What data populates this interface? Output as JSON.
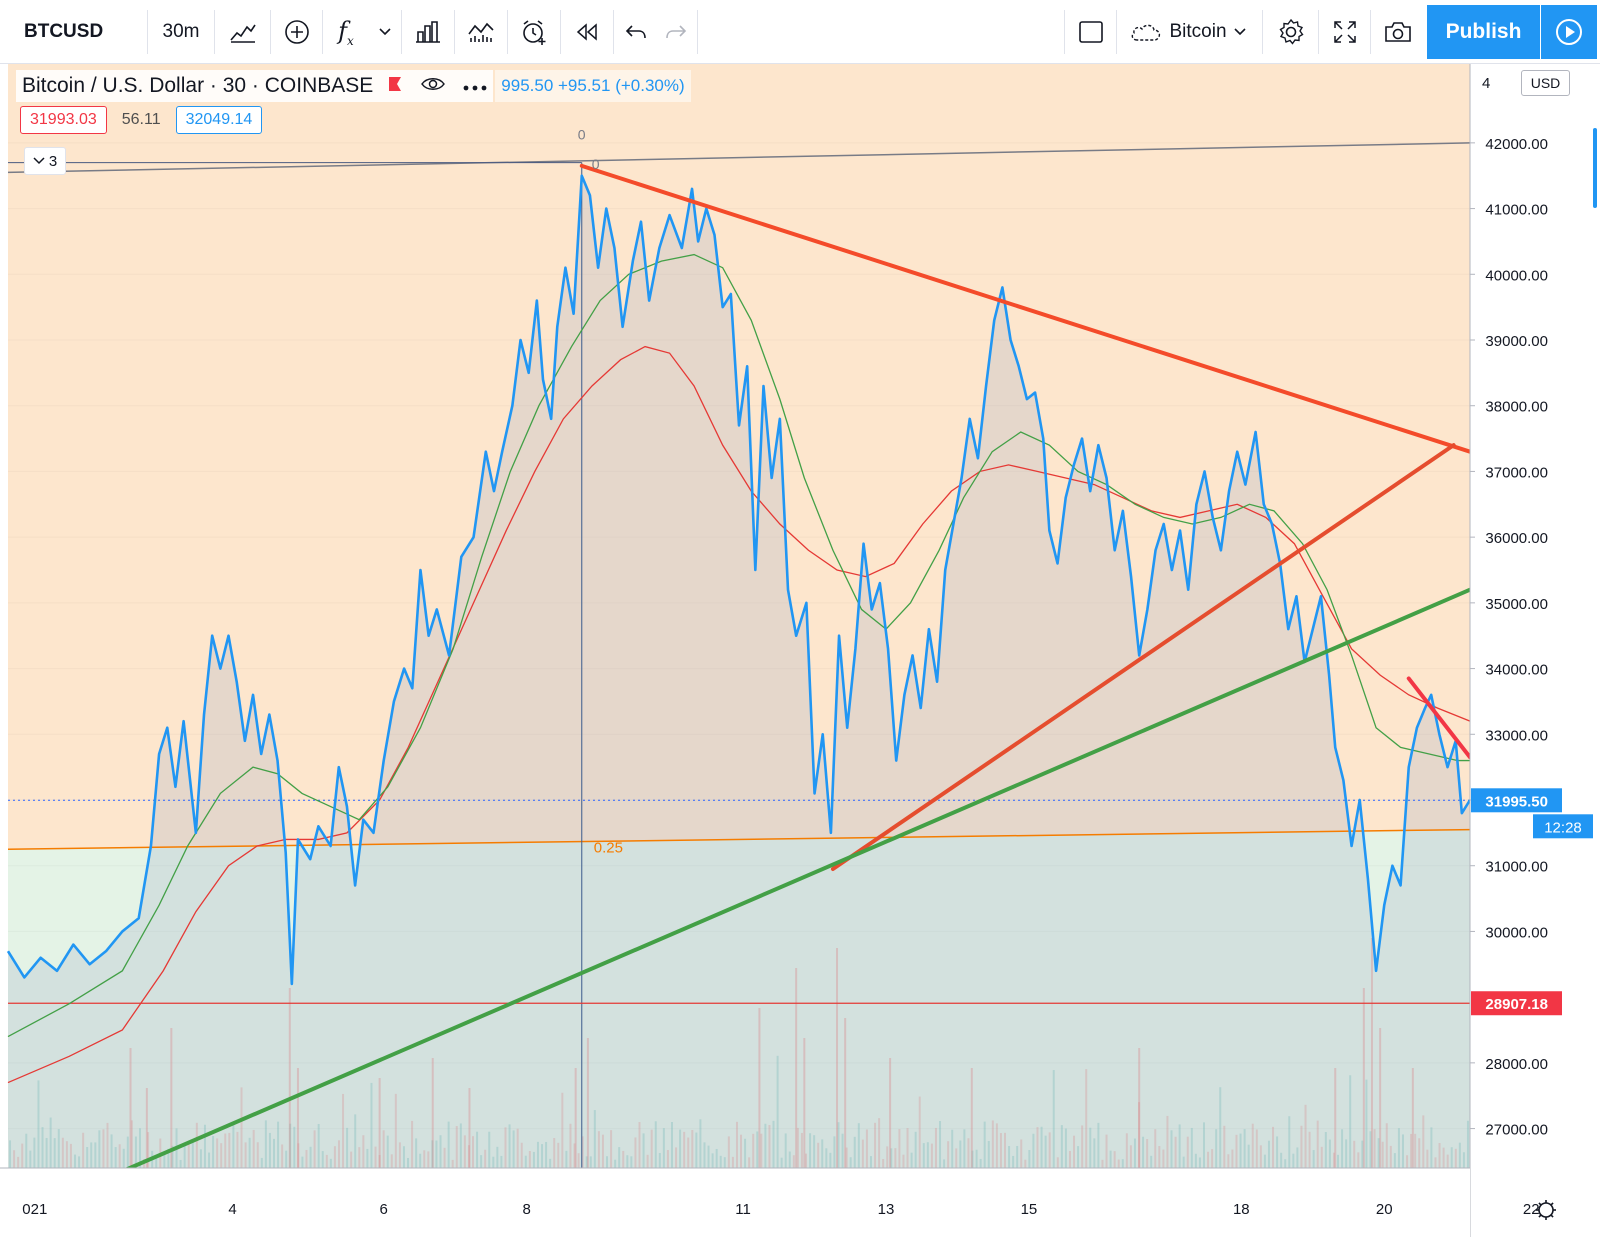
{
  "toolbar": {
    "symbol": "BTCUSD",
    "interval": "30m",
    "fx_label": "f",
    "fx_sub": "x",
    "layout_name": "Bitcoin",
    "publish_label": "Publish"
  },
  "legend": {
    "title": "Bitcoin / U.S. Dollar · 30 · COINBASE",
    "price_change": "995.50 +95.51 (+0.30%)",
    "collapsed_count": "3"
  },
  "indicators": [
    {
      "value": "31993.03",
      "color": "#f23645"
    },
    {
      "value": "56.11",
      "color": "#4f4f4f"
    },
    {
      "value": "32049.14",
      "color": "#2196f3"
    }
  ],
  "chart_data": {
    "type": "line",
    "currency": "USD",
    "x_ticks": [
      "021",
      "4",
      "6",
      "8",
      "11",
      "13",
      "15",
      "18",
      "20",
      "22"
    ],
    "y_ticks": [
      "42000.00",
      "41000.00",
      "40000.00",
      "39000.00",
      "38000.00",
      "37000.00",
      "36000.00",
      "35000.00",
      "34000.00",
      "33000.00",
      "32000.00",
      "31000.00",
      "30000.00",
      "28000.00",
      "27000.00"
    ],
    "y_top_partial": "4",
    "ylim": [
      26400,
      43200
    ],
    "current_price": "31995.50",
    "countdown": "12:28",
    "hline_price": "28907.18",
    "fib_label_top": "0",
    "fib_label_top2": "0",
    "fib_label_mid": "0.25",
    "price_series": [
      [
        0,
        29700
      ],
      [
        0.4,
        29300
      ],
      [
        0.8,
        29600
      ],
      [
        1.2,
        29400
      ],
      [
        1.6,
        29800
      ],
      [
        2.0,
        29500
      ],
      [
        2.4,
        29700
      ],
      [
        2.8,
        30000
      ],
      [
        3.2,
        30200
      ],
      [
        3.5,
        31300
      ],
      [
        3.7,
        32700
      ],
      [
        3.9,
        33100
      ],
      [
        4.1,
        32200
      ],
      [
        4.3,
        33200
      ],
      [
        4.6,
        31500
      ],
      [
        4.8,
        33300
      ],
      [
        5.0,
        34500
      ],
      [
        5.2,
        34000
      ],
      [
        5.4,
        34500
      ],
      [
        5.6,
        33800
      ],
      [
        5.8,
        32900
      ],
      [
        6.0,
        33600
      ],
      [
        6.2,
        32700
      ],
      [
        6.4,
        33300
      ],
      [
        6.6,
        32600
      ],
      [
        6.8,
        31200
      ],
      [
        6.95,
        29200
      ],
      [
        7.1,
        31400
      ],
      [
        7.4,
        31100
      ],
      [
        7.6,
        31600
      ],
      [
        7.9,
        31300
      ],
      [
        8.1,
        32500
      ],
      [
        8.3,
        31900
      ],
      [
        8.5,
        30700
      ],
      [
        8.7,
        31700
      ],
      [
        8.95,
        31500
      ],
      [
        9.2,
        32600
      ],
      [
        9.45,
        33500
      ],
      [
        9.7,
        34000
      ],
      [
        9.9,
        33700
      ],
      [
        10.1,
        35500
      ],
      [
        10.3,
        34500
      ],
      [
        10.5,
        34900
      ],
      [
        10.8,
        34200
      ],
      [
        11.1,
        35700
      ],
      [
        11.4,
        36000
      ],
      [
        11.7,
        37300
      ],
      [
        11.9,
        36700
      ],
      [
        12.1,
        37300
      ],
      [
        12.35,
        38000
      ],
      [
        12.55,
        39000
      ],
      [
        12.75,
        38500
      ],
      [
        12.95,
        39600
      ],
      [
        13.1,
        38400
      ],
      [
        13.3,
        37800
      ],
      [
        13.45,
        39200
      ],
      [
        13.65,
        40100
      ],
      [
        13.85,
        39400
      ],
      [
        14.05,
        41500
      ],
      [
        14.25,
        41200
      ],
      [
        14.45,
        40100
      ],
      [
        14.65,
        41000
      ],
      [
        14.85,
        40400
      ],
      [
        15.05,
        39200
      ],
      [
        15.3,
        40200
      ],
      [
        15.5,
        40800
      ],
      [
        15.7,
        39600
      ],
      [
        15.95,
        40400
      ],
      [
        16.2,
        40900
      ],
      [
        16.5,
        40400
      ],
      [
        16.75,
        41300
      ],
      [
        16.9,
        40500
      ],
      [
        17.1,
        41000
      ],
      [
        17.3,
        40600
      ],
      [
        17.5,
        39500
      ],
      [
        17.7,
        39700
      ],
      [
        17.9,
        37700
      ],
      [
        18.1,
        38600
      ],
      [
        18.3,
        35500
      ],
      [
        18.5,
        38300
      ],
      [
        18.7,
        36900
      ],
      [
        18.9,
        37800
      ],
      [
        19.1,
        35200
      ],
      [
        19.3,
        34500
      ],
      [
        19.55,
        35000
      ],
      [
        19.75,
        32100
      ],
      [
        19.95,
        33000
      ],
      [
        20.15,
        31500
      ],
      [
        20.35,
        34500
      ],
      [
        20.55,
        33100
      ],
      [
        20.75,
        34300
      ],
      [
        20.95,
        35900
      ],
      [
        21.15,
        34900
      ],
      [
        21.35,
        35300
      ],
      [
        21.55,
        34300
      ],
      [
        21.75,
        32600
      ],
      [
        21.95,
        33600
      ],
      [
        22.15,
        34200
      ],
      [
        22.35,
        33400
      ],
      [
        22.55,
        34600
      ],
      [
        22.75,
        33800
      ],
      [
        22.95,
        35500
      ],
      [
        23.15,
        36200
      ],
      [
        23.35,
        36900
      ],
      [
        23.55,
        37800
      ],
      [
        23.75,
        37200
      ],
      [
        23.95,
        38300
      ],
      [
        24.15,
        39300
      ],
      [
        24.35,
        39800
      ],
      [
        24.55,
        39000
      ],
      [
        24.75,
        38600
      ],
      [
        24.95,
        38100
      ],
      [
        25.15,
        38200
      ],
      [
        25.35,
        37500
      ],
      [
        25.5,
        36100
      ],
      [
        25.7,
        35600
      ],
      [
        25.9,
        36600
      ],
      [
        26.1,
        37100
      ],
      [
        26.3,
        37500
      ],
      [
        26.5,
        36700
      ],
      [
        26.7,
        37400
      ],
      [
        26.9,
        36900
      ],
      [
        27.1,
        35800
      ],
      [
        27.3,
        36400
      ],
      [
        27.5,
        35400
      ],
      [
        27.7,
        34200
      ],
      [
        27.9,
        34900
      ],
      [
        28.1,
        35800
      ],
      [
        28.3,
        36200
      ],
      [
        28.5,
        35500
      ],
      [
        28.7,
        36100
      ],
      [
        28.9,
        35200
      ],
      [
        29.1,
        36500
      ],
      [
        29.3,
        37000
      ],
      [
        29.5,
        36300
      ],
      [
        29.7,
        35800
      ],
      [
        29.9,
        36700
      ],
      [
        30.1,
        37300
      ],
      [
        30.3,
        36800
      ],
      [
        30.55,
        37600
      ],
      [
        30.75,
        36500
      ],
      [
        30.95,
        36200
      ],
      [
        31.15,
        35600
      ],
      [
        31.35,
        34600
      ],
      [
        31.55,
        35100
      ],
      [
        31.75,
        34100
      ],
      [
        31.95,
        34600
      ],
      [
        32.15,
        35100
      ],
      [
        32.35,
        33900
      ],
      [
        32.5,
        32800
      ],
      [
        32.7,
        32300
      ],
      [
        32.9,
        31300
      ],
      [
        33.1,
        32000
      ],
      [
        33.3,
        30800
      ],
      [
        33.5,
        29400
      ],
      [
        33.7,
        30400
      ],
      [
        33.9,
        31000
      ],
      [
        34.1,
        30700
      ],
      [
        34.3,
        32500
      ],
      [
        34.5,
        33100
      ],
      [
        34.7,
        33400
      ],
      [
        34.85,
        33600
      ],
      [
        35.05,
        33000
      ],
      [
        35.25,
        32500
      ],
      [
        35.45,
        32900
      ],
      [
        35.6,
        31800
      ],
      [
        35.8,
        32000
      ]
    ],
    "ma_green": [
      [
        0,
        28400
      ],
      [
        1.5,
        28900
      ],
      [
        2.8,
        29400
      ],
      [
        3.7,
        30400
      ],
      [
        4.4,
        31300
      ],
      [
        5.2,
        32100
      ],
      [
        6.0,
        32500
      ],
      [
        6.6,
        32400
      ],
      [
        7.2,
        32100
      ],
      [
        7.9,
        31900
      ],
      [
        8.6,
        31700
      ],
      [
        9.3,
        32200
      ],
      [
        10.1,
        33100
      ],
      [
        10.9,
        34300
      ],
      [
        11.6,
        35700
      ],
      [
        12.3,
        37000
      ],
      [
        13.0,
        38000
      ],
      [
        13.8,
        38900
      ],
      [
        14.5,
        39600
      ],
      [
        15.2,
        40000
      ],
      [
        16.0,
        40200
      ],
      [
        16.8,
        40300
      ],
      [
        17.5,
        40100
      ],
      [
        18.2,
        39300
      ],
      [
        18.9,
        38100
      ],
      [
        19.5,
        36900
      ],
      [
        20.2,
        35800
      ],
      [
        20.9,
        34900
      ],
      [
        21.5,
        34600
      ],
      [
        22.1,
        35000
      ],
      [
        22.8,
        35800
      ],
      [
        23.4,
        36600
      ],
      [
        24.1,
        37300
      ],
      [
        24.8,
        37600
      ],
      [
        25.5,
        37400
      ],
      [
        26.2,
        37000
      ],
      [
        26.9,
        36800
      ],
      [
        27.6,
        36500
      ],
      [
        28.3,
        36300
      ],
      [
        29.0,
        36200
      ],
      [
        29.7,
        36300
      ],
      [
        30.4,
        36500
      ],
      [
        31.0,
        36400
      ],
      [
        31.7,
        35900
      ],
      [
        32.3,
        35200
      ],
      [
        32.9,
        34200
      ],
      [
        33.5,
        33100
      ],
      [
        34.1,
        32800
      ],
      [
        34.8,
        32700
      ],
      [
        35.5,
        32600
      ],
      [
        35.8,
        32600
      ]
    ],
    "ma_red": [
      [
        0,
        27700
      ],
      [
        1.5,
        28100
      ],
      [
        2.8,
        28500
      ],
      [
        3.8,
        29400
      ],
      [
        4.6,
        30300
      ],
      [
        5.4,
        31000
      ],
      [
        6.1,
        31300
      ],
      [
        6.8,
        31400
      ],
      [
        7.6,
        31400
      ],
      [
        8.3,
        31500
      ],
      [
        9.1,
        32000
      ],
      [
        9.8,
        32800
      ],
      [
        10.6,
        33900
      ],
      [
        11.4,
        35000
      ],
      [
        12.2,
        36100
      ],
      [
        12.9,
        37000
      ],
      [
        13.6,
        37800
      ],
      [
        14.3,
        38300
      ],
      [
        15.0,
        38700
      ],
      [
        15.6,
        38900
      ],
      [
        16.2,
        38800
      ],
      [
        16.8,
        38300
      ],
      [
        17.5,
        37400
      ],
      [
        18.2,
        36700
      ],
      [
        18.9,
        36200
      ],
      [
        19.6,
        35800
      ],
      [
        20.3,
        35500
      ],
      [
        21.0,
        35400
      ],
      [
        21.7,
        35600
      ],
      [
        22.4,
        36200
      ],
      [
        23.1,
        36700
      ],
      [
        23.8,
        37000
      ],
      [
        24.5,
        37100
      ],
      [
        25.2,
        37000
      ],
      [
        25.9,
        36900
      ],
      [
        26.6,
        36800
      ],
      [
        27.3,
        36600
      ],
      [
        28.0,
        36400
      ],
      [
        28.7,
        36300
      ],
      [
        29.4,
        36400
      ],
      [
        30.1,
        36500
      ],
      [
        30.8,
        36300
      ],
      [
        31.5,
        35900
      ],
      [
        32.2,
        35100
      ],
      [
        32.9,
        34300
      ],
      [
        33.6,
        33900
      ],
      [
        34.3,
        33600
      ],
      [
        35.0,
        33400
      ],
      [
        35.8,
        33200
      ]
    ],
    "volume_spikes": [
      [
        3.0,
        1.2
      ],
      [
        3.4,
        0.8
      ],
      [
        4.0,
        1.4
      ],
      [
        6.9,
        1.8
      ],
      [
        7.1,
        1.0
      ],
      [
        9.1,
        0.9
      ],
      [
        10.4,
        1.1
      ],
      [
        11.3,
        0.8
      ],
      [
        13.9,
        1.0
      ],
      [
        14.2,
        1.3
      ],
      [
        18.4,
        1.6
      ],
      [
        19.3,
        2.0
      ],
      [
        19.5,
        1.3
      ],
      [
        20.3,
        2.2
      ],
      [
        20.5,
        1.5
      ],
      [
        21.6,
        1.1
      ],
      [
        23.6,
        1.0
      ],
      [
        27.7,
        1.2
      ],
      [
        32.5,
        1.0
      ],
      [
        33.2,
        1.8
      ],
      [
        33.4,
        2.3
      ],
      [
        33.6,
        1.4
      ],
      [
        34.4,
        1.0
      ]
    ],
    "trendlines": [
      {
        "color": "#f44b2a",
        "x1": 14.05,
        "y1": 41650,
        "x2": 35.8,
        "y2": 37300
      },
      {
        "color": "#e54d2e",
        "x1": 20.2,
        "y1": 30950,
        "x2": 35.4,
        "y2": 37400
      },
      {
        "color": "#43a046",
        "x1": 0,
        "y1": 25600,
        "x2": 35.8,
        "y2": 35200
      },
      {
        "color": "#f23645",
        "x1": 34.3,
        "y1": 33850,
        "x2": 35.8,
        "y2": 32650
      }
    ],
    "fib_lines": [
      {
        "color": "#787b86",
        "x1": 0,
        "y1": 41550,
        "x2": 35.8,
        "y2": 42000
      },
      {
        "color": "#f57c00",
        "x1": 0,
        "y1": 31250,
        "x2": 35.8,
        "y2": 31550
      }
    ],
    "vline_x": 14.05,
    "x_range": [
      0,
      35.8
    ]
  }
}
